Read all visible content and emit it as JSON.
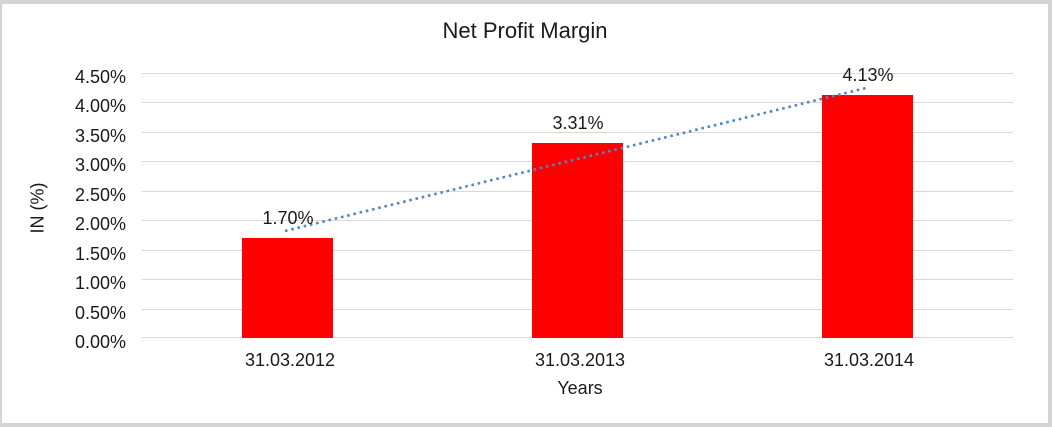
{
  "chart_data": {
    "type": "bar",
    "title": "Net Profit Margin",
    "categories": [
      "31.03.2012",
      "31.03.2013",
      "31.03.2014"
    ],
    "values": [
      1.7,
      3.31,
      4.13
    ],
    "data_labels": [
      "1.70%",
      "3.31%",
      "4.13%"
    ],
    "xlabel": "Years",
    "ylabel": "IN (%)",
    "ylim": [
      0,
      4.5
    ],
    "ytick_step": 0.5,
    "yticks_top_to_bottom": [
      "4.50%",
      "4.00%",
      "3.50%",
      "3.00%",
      "2.50%",
      "2.00%",
      "1.50%",
      "1.00%",
      "0.50%",
      "0.00%"
    ],
    "grid": true,
    "legend": "none",
    "bar_color": "#FF0000",
    "gridline_color": "#D9D9D9",
    "frame_border_color": "#D4D4D4",
    "trendline": {
      "type": "linear",
      "style": "dotted",
      "color": "#4F87C5"
    }
  }
}
